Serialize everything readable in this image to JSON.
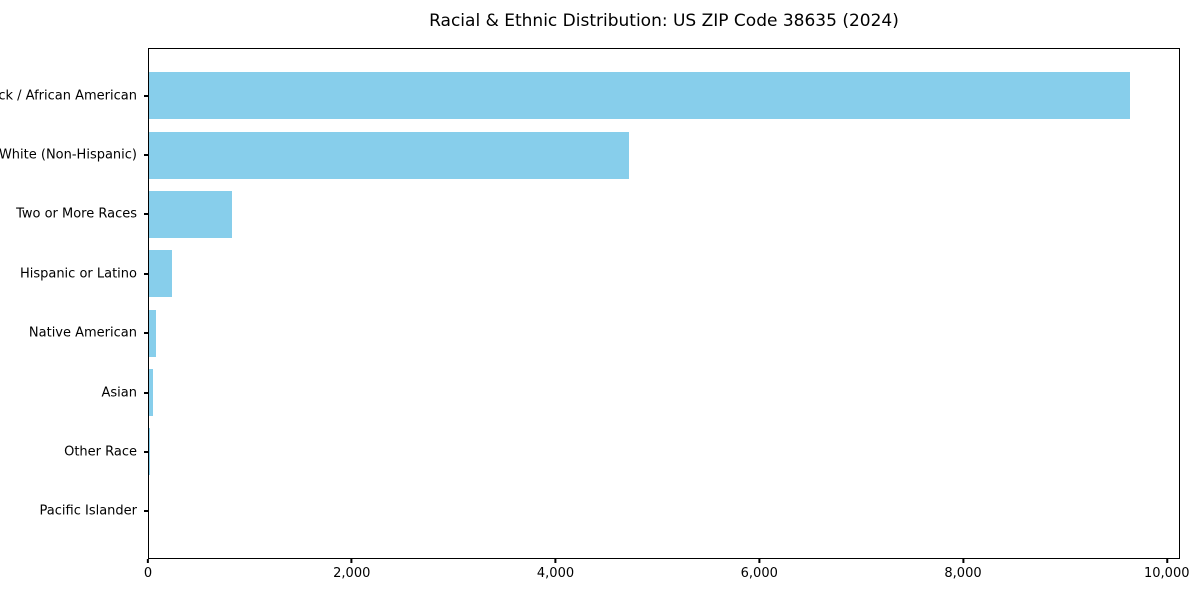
{
  "chart_data": {
    "type": "bar",
    "orientation": "horizontal",
    "title": "Racial & Ethnic Distribution: US ZIP Code 38635 (2024)",
    "categories": [
      "Black / African American",
      "White (Non-Hispanic)",
      "Two or More Races",
      "Hispanic or Latino",
      "Native American",
      "Asian",
      "Other Race",
      "Pacific Islander"
    ],
    "values": [
      9647,
      4716,
      814,
      225,
      65,
      35,
      10,
      0
    ],
    "xlabel": "",
    "ylabel": "",
    "xlim": [
      0,
      10130
    ],
    "x_ticks": [
      0,
      2000,
      4000,
      6000,
      8000,
      10000
    ],
    "x_tick_labels": [
      "0",
      "2,000",
      "4,000",
      "6,000",
      "8,000",
      "10,000"
    ],
    "bar_color": "#87CEEB",
    "axis_color": "#000000",
    "text_color": "#000000",
    "grid": false,
    "legend": "none",
    "sorted": "descending"
  }
}
